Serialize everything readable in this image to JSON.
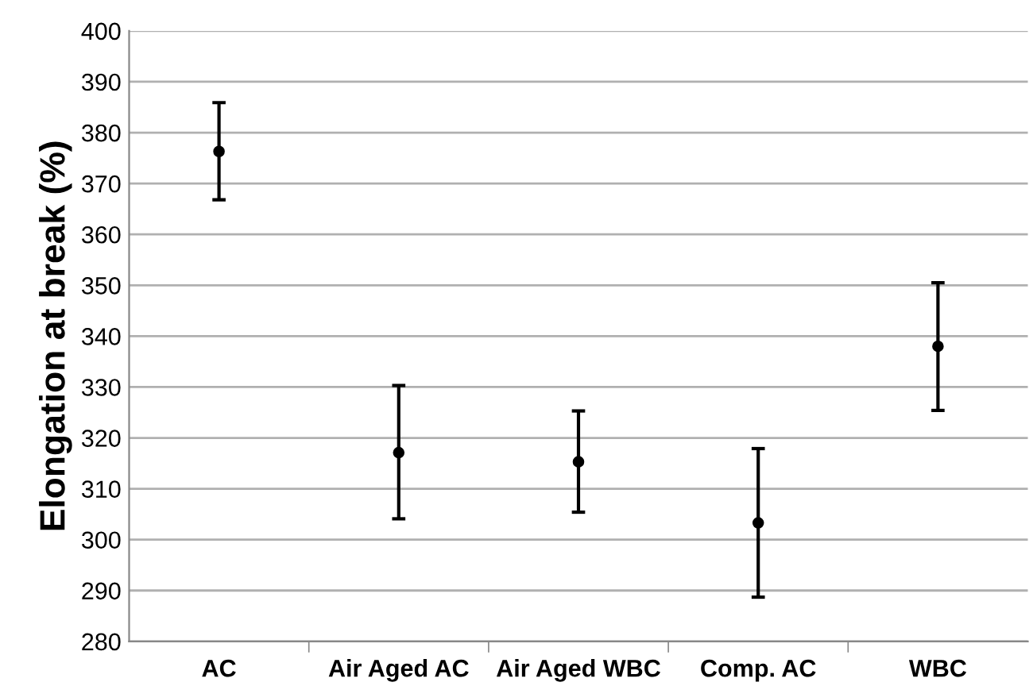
{
  "chart_data": {
    "type": "scatter",
    "ylabel": "Elongation at break (%)",
    "categories": [
      "AC",
      "Air Aged AC",
      "Air Aged WBC",
      "Comp. AC",
      "WBC"
    ],
    "values": [
      376.3,
      317.1,
      315.3,
      303.3,
      338.0
    ],
    "errors": [
      [
        366.8,
        385.9
      ],
      [
        304.1,
        330.3
      ],
      [
        305.4,
        325.3
      ],
      [
        288.7,
        317.9
      ],
      [
        325.4,
        350.5
      ]
    ],
    "color": "#000000",
    "marker": "circle",
    "ylim": [
      280,
      400
    ],
    "yticks": [
      280,
      290,
      300,
      310,
      320,
      330,
      340,
      350,
      360,
      370,
      380,
      390,
      400
    ],
    "grid": "y",
    "legend": false
  }
}
